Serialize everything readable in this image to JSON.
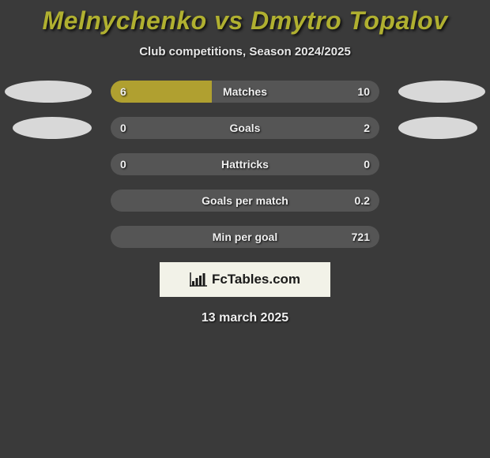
{
  "title": "Melnychenko vs Dmytro Topalov",
  "subtitle": "Club competitions, Season 2024/2025",
  "date": "13 march 2025",
  "logo_text": "FcTables.com",
  "colors": {
    "title_color": "#b0b030",
    "bar_left": "#b0a030",
    "bar_right": "#555555",
    "background": "#3a3a3a",
    "text": "#f0f0f0",
    "oval": "#d8d8d8",
    "logo_bg": "#f2f2e8"
  },
  "rows": [
    {
      "label": "Matches",
      "left_val": "6",
      "right_val": "10",
      "left_pct": 37.5,
      "right_pct": 62.5,
      "show_ovals": true,
      "oval_indent": false
    },
    {
      "label": "Goals",
      "left_val": "0",
      "right_val": "2",
      "left_pct": 0,
      "right_pct": 100,
      "show_ovals": true,
      "oval_indent": true
    },
    {
      "label": "Hattricks",
      "left_val": "0",
      "right_val": "0",
      "left_pct": 0,
      "right_pct": 100,
      "show_ovals": false,
      "oval_indent": false
    },
    {
      "label": "Goals per match",
      "left_val": "",
      "right_val": "0.2",
      "left_pct": 0,
      "right_pct": 100,
      "show_ovals": false,
      "oval_indent": false
    },
    {
      "label": "Min per goal",
      "left_val": "",
      "right_val": "721",
      "left_pct": 0,
      "right_pct": 100,
      "show_ovals": false,
      "oval_indent": false
    }
  ]
}
